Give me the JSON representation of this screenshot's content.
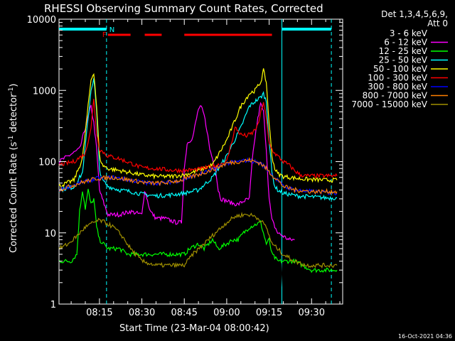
{
  "chart_data": {
    "type": "line",
    "title": "RHESSI Observing Summary Count Rates, Corrected",
    "xlabel": "Start Time (23-Mar-04 08:00:42)",
    "ylabel": "Corrected Count Rate (s⁻¹ detector⁻¹)",
    "ylabel_main": "Corrected Count Rate (s",
    "ylabel_exp1": "-1",
    "ylabel_mid": " detector",
    "ylabel_exp2": "-1",
    "ylabel_end": ")",
    "yscale": "log",
    "ylim": [
      1,
      10000
    ],
    "xlim_minutes": [
      0.7,
      101
    ],
    "xticks": [
      {
        "min": 15,
        "label": "08:15"
      },
      {
        "min": 30,
        "label": "08:30"
      },
      {
        "min": 45,
        "label": "08:45"
      },
      {
        "min": 60,
        "label": "09:00"
      },
      {
        "min": 75,
        "label": "09:15"
      },
      {
        "min": 90,
        "label": "09:30"
      }
    ],
    "yticks": [
      {
        "v": 1,
        "label": "1"
      },
      {
        "v": 10,
        "label": "10"
      },
      {
        "v": 100,
        "label": "100"
      },
      {
        "v": 1000,
        "label": "1000"
      },
      {
        "v": 10000,
        "label": "10000"
      }
    ],
    "legend_header": [
      "Det 1,3,4,5,6,9,",
      "Att 0"
    ],
    "legend_position": "right",
    "timestamp": "16-Oct-2021 04:36",
    "markers": {
      "night_label": "N",
      "flare_label": "F",
      "night_segments": [
        [
          0.7,
          17.5
        ],
        [
          79.5,
          97
        ]
      ],
      "flare_segments": [
        [
          18,
          26
        ],
        [
          31,
          37
        ],
        [
          45,
          76
        ]
      ],
      "solid_lines": [
        79.5
      ],
      "dashed_lines": [
        17.5,
        97
      ]
    },
    "series": [
      {
        "name": "3 - 6 keV",
        "color": "#000000",
        "x": [
          0.7,
          8,
          10,
          12,
          13,
          14,
          14.5,
          15,
          15.5,
          16,
          17,
          18,
          22,
          26,
          30,
          31,
          33,
          35,
          38,
          42,
          44,
          45,
          46,
          47,
          48,
          49,
          50,
          51,
          52,
          53,
          54,
          55,
          56,
          57,
          58,
          59,
          60,
          62,
          63,
          64,
          65,
          66,
          67,
          68,
          69,
          70,
          71,
          72,
          73,
          74,
          75,
          76,
          76.5,
          77,
          78,
          79,
          80,
          81,
          82,
          83,
          84
        ],
        "y": [
          100,
          150,
          300,
          650,
          400,
          150,
          20,
          5,
          4,
          4,
          40,
          35,
          30,
          28,
          22,
          35,
          25,
          20,
          18,
          15,
          14,
          80,
          180,
          140,
          200,
          300,
          420,
          450,
          400,
          280,
          180,
          130,
          90,
          55,
          40,
          33,
          30,
          30,
          28,
          32,
          28,
          25,
          22,
          24,
          20,
          20,
          25,
          320,
          400,
          380,
          60,
          15,
          10,
          8,
          7,
          6,
          1.3,
          1.25,
          1.3,
          1.25,
          1.3
        ]
      },
      {
        "name": "6 - 12 keV",
        "color": "#ff00ff",
        "x": [
          0.7,
          8,
          10,
          12,
          13,
          14,
          15,
          16,
          18,
          22,
          26,
          30,
          31,
          33,
          35,
          38,
          42,
          44,
          45,
          46,
          48,
          50,
          51,
          52,
          53,
          54,
          56,
          57,
          58,
          60,
          62,
          64,
          66,
          68,
          69,
          70,
          71,
          72,
          73,
          74,
          75,
          76,
          78,
          80,
          82,
          84
        ],
        "y": [
          100,
          150,
          300,
          600,
          350,
          150,
          40,
          30,
          18,
          18,
          20,
          18,
          40,
          20,
          16,
          16,
          14,
          14,
          80,
          180,
          220,
          550,
          580,
          450,
          280,
          150,
          80,
          40,
          30,
          28,
          26,
          25,
          28,
          30,
          100,
          220,
          400,
          650,
          500,
          150,
          30,
          15,
          10,
          9,
          8,
          8
        ]
      },
      {
        "name": "12 - 25 keV",
        "color": "#00ff00",
        "x": [
          0.7,
          5,
          7,
          8,
          9,
          10,
          11,
          12,
          13,
          14,
          15,
          18,
          22,
          25,
          28,
          30,
          32,
          35,
          38,
          40,
          42,
          45,
          47,
          50,
          52,
          55,
          57,
          60,
          62,
          64,
          66,
          68,
          70,
          72,
          74,
          75,
          76,
          78,
          80,
          84,
          90,
          95,
          99
        ],
        "y": [
          4,
          4,
          5,
          20,
          40,
          22,
          40,
          25,
          30,
          12,
          8,
          6,
          6,
          5,
          5,
          5,
          5,
          5,
          5,
          5,
          5,
          5,
          6,
          7,
          6,
          8,
          6,
          7,
          8,
          8,
          10,
          12,
          13,
          14,
          7,
          8,
          5,
          4,
          4,
          4,
          3,
          3,
          3
        ]
      },
      {
        "name": "25 - 50 keV",
        "color": "#00ffff",
        "x": [
          0.7,
          6,
          9,
          11,
          12,
          13,
          14,
          15,
          16,
          18,
          22,
          26,
          30,
          35,
          40,
          45,
          50,
          55,
          60,
          65,
          68,
          70,
          72,
          73,
          74,
          75,
          76,
          77,
          78,
          80,
          85,
          90,
          95,
          99
        ],
        "y": [
          40,
          44,
          70,
          400,
          1000,
          1500,
          500,
          80,
          55,
          45,
          40,
          38,
          35,
          33,
          34,
          36,
          40,
          60,
          120,
          300,
          600,
          700,
          800,
          900,
          700,
          200,
          70,
          45,
          40,
          36,
          33,
          32,
          31,
          31
        ]
      },
      {
        "name": "50 - 100 keV",
        "color": "#ffff00",
        "x": [
          0.7,
          6,
          9,
          11,
          12,
          13,
          14,
          15,
          16,
          18,
          22,
          26,
          30,
          35,
          40,
          45,
          50,
          55,
          60,
          65,
          68,
          70,
          72,
          73,
          74,
          75,
          76,
          77,
          78,
          80,
          85,
          90,
          95,
          99
        ],
        "y": [
          45,
          55,
          110,
          600,
          1400,
          1800,
          600,
          120,
          90,
          80,
          75,
          70,
          65,
          62,
          62,
          65,
          75,
          90,
          200,
          600,
          900,
          1000,
          1300,
          1900,
          1300,
          350,
          120,
          80,
          68,
          62,
          58,
          56,
          55,
          55
        ]
      },
      {
        "name": "100 - 300 keV",
        "color": "#ff0000",
        "x": [
          0.7,
          6,
          10,
          12,
          13,
          14,
          15,
          18,
          22,
          26,
          30,
          35,
          40,
          45,
          50,
          55,
          60,
          63,
          65,
          67,
          69,
          71,
          72,
          73,
          74,
          75,
          76,
          77,
          78,
          80,
          82,
          84,
          86,
          88,
          92,
          96,
          99
        ],
        "y": [
          90,
          100,
          130,
          300,
          750,
          250,
          150,
          120,
          110,
          95,
          82,
          80,
          76,
          75,
          78,
          85,
          100,
          300,
          240,
          230,
          250,
          320,
          470,
          700,
          400,
          180,
          150,
          130,
          120,
          100,
          90,
          75,
          65,
          63,
          63,
          63,
          63
        ]
      },
      {
        "name": "300 - 800 keV",
        "color": "#0000ff",
        "x": [
          0.7,
          8,
          14,
          20,
          26,
          32,
          38,
          44,
          48,
          52,
          56,
          60,
          64,
          68,
          70,
          72,
          74,
          76,
          78,
          80,
          84,
          90,
          99
        ],
        "y": [
          40,
          50,
          58,
          60,
          55,
          50,
          50,
          55,
          62,
          70,
          80,
          95,
          100,
          105,
          100,
          95,
          80,
          65,
          55,
          45,
          40,
          38,
          36
        ]
      },
      {
        "name": "800 - 7000 keV",
        "color": "#ff7f00",
        "x": [
          0.7,
          8,
          14,
          20,
          26,
          32,
          38,
          44,
          48,
          52,
          56,
          60,
          64,
          68,
          70,
          72,
          74,
          76,
          78,
          80,
          84,
          90,
          99
        ],
        "y": [
          40,
          50,
          58,
          60,
          55,
          50,
          50,
          55,
          62,
          70,
          80,
          95,
          100,
          105,
          100,
          95,
          80,
          65,
          55,
          45,
          40,
          38,
          38
        ]
      },
      {
        "name": "7000 - 15000 keV",
        "color": "#9f8f00",
        "x": [
          0.7,
          4,
          7,
          10,
          13,
          15,
          17,
          20,
          23,
          26,
          30,
          35,
          40,
          45,
          48,
          52,
          56,
          60,
          63,
          66,
          68,
          70,
          72,
          74,
          76,
          78,
          80,
          84,
          88,
          92,
          99
        ],
        "y": [
          6,
          7,
          9,
          12,
          14,
          15,
          14,
          12,
          9,
          6,
          4,
          3.5,
          3.5,
          3.5,
          5,
          7,
          10,
          14,
          17,
          18,
          18,
          17,
          15,
          12,
          7,
          6,
          5,
          4,
          3.5,
          3.5,
          3.5
        ]
      }
    ]
  }
}
